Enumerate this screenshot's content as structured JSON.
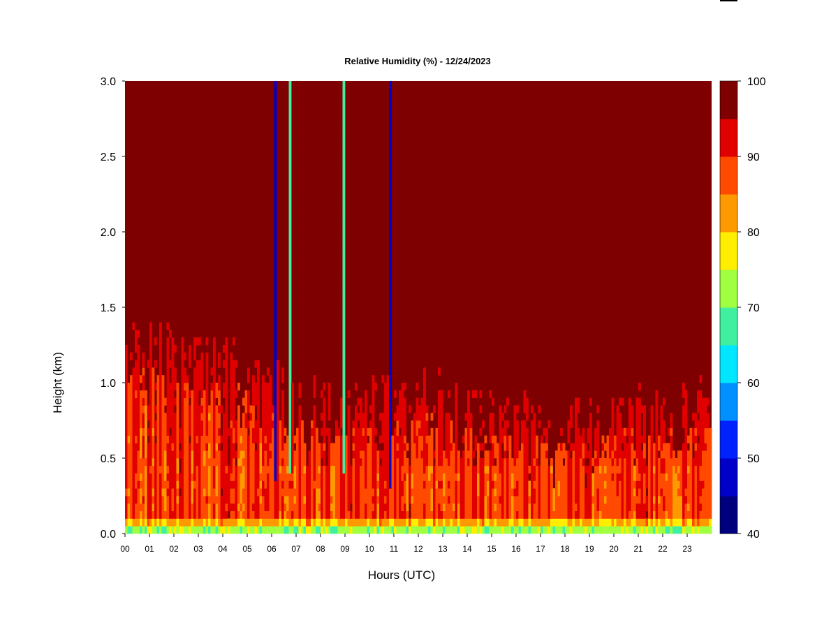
{
  "chart_data": {
    "type": "heatmap",
    "title": "Relative Humidity (%) - 12/24/2023",
    "xlabel": "Hours (UTC)",
    "ylabel": "Height (km)",
    "xlim": [
      0,
      24
    ],
    "ylim": [
      0,
      3
    ],
    "x_ticks": [
      "00",
      "01",
      "02",
      "03",
      "04",
      "05",
      "06",
      "07",
      "08",
      "09",
      "10",
      "11",
      "12",
      "13",
      "14",
      "15",
      "16",
      "17",
      "18",
      "19",
      "20",
      "21",
      "22",
      "23"
    ],
    "y_ticks": [
      0.0,
      0.5,
      1.0,
      1.5,
      2.0,
      2.5,
      3.0
    ],
    "y_tick_labels": [
      "0.0",
      "0.5",
      "1.0",
      "1.5",
      "2.0",
      "2.5",
      "3.0"
    ],
    "grid": false,
    "colorbar": {
      "levels": [
        40,
        45,
        50,
        55,
        60,
        65,
        70,
        75,
        80,
        85,
        90,
        95,
        100
      ],
      "tick_labels": [
        "40",
        "50",
        "60",
        "70",
        "80",
        "90",
        "100"
      ],
      "colors": [
        "#00007f",
        "#0000c8",
        "#0022ff",
        "#0090ff",
        "#00e6ff",
        "#40f0a0",
        "#a0ff40",
        "#ffee00",
        "#ff9900",
        "#ff4a00",
        "#e00000",
        "#7f0000"
      ]
    },
    "boundary_layer_top_km": [
      [
        0.0,
        1.2
      ],
      [
        1.0,
        1.3
      ],
      [
        2.0,
        1.2
      ],
      [
        3.0,
        1.2
      ],
      [
        4.0,
        1.2
      ],
      [
        5.0,
        1.1
      ],
      [
        6.0,
        1.0
      ],
      [
        7.0,
        0.9
      ],
      [
        8.0,
        0.9
      ],
      [
        9.0,
        0.85
      ],
      [
        10.0,
        0.9
      ],
      [
        11.0,
        0.9
      ],
      [
        12.0,
        0.95
      ],
      [
        13.0,
        0.9
      ],
      [
        14.0,
        0.85
      ],
      [
        15.0,
        0.8
      ],
      [
        16.0,
        0.8
      ],
      [
        17.0,
        0.75
      ],
      [
        18.0,
        0.75
      ],
      [
        19.0,
        0.75
      ],
      [
        20.0,
        0.8
      ],
      [
        21.0,
        0.85
      ],
      [
        22.0,
        0.8
      ],
      [
        23.0,
        0.9
      ],
      [
        24.0,
        0.9
      ]
    ],
    "dry_columns": [
      {
        "center_hour": 6.15,
        "width_hours": 0.12,
        "base_km": 0.35,
        "min_rh": 45
      },
      {
        "center_hour": 6.75,
        "width_hours": 0.12,
        "base_km": 0.4,
        "min_rh": 68
      },
      {
        "center_hour": 8.95,
        "width_hours": 0.1,
        "base_km": 0.4,
        "min_rh": 68
      },
      {
        "center_hour": 10.85,
        "width_hours": 0.12,
        "base_km": 0.3,
        "min_rh": 45
      }
    ],
    "surface_layer": {
      "top_km": 0.12,
      "min_rh": 68
    }
  }
}
